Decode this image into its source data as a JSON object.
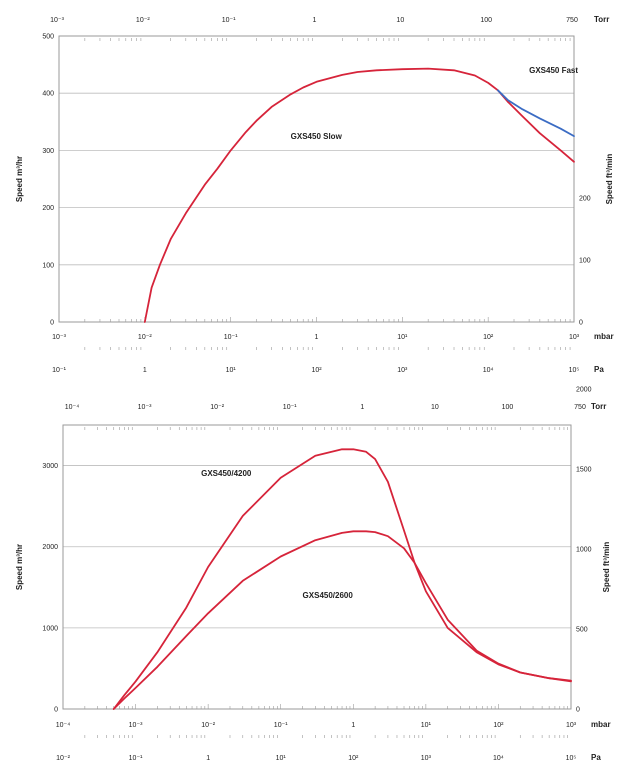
{
  "chart_data": [
    {
      "type": "line",
      "title": "",
      "x_scale": "log",
      "xlabel": "mbar",
      "xlim": [
        0.001,
        1000
      ],
      "x_ticks": [
        "10⁻³",
        "10⁻²",
        "10⁻¹",
        "1",
        "10¹",
        "10²",
        "10³"
      ],
      "top_axis": {
        "unit": "Torr",
        "ticks": [
          "10⁻³",
          "10⁻²",
          "10⁻¹",
          "1",
          "10",
          "100",
          "750"
        ]
      },
      "bottom_axis_2": {
        "unit": "Pa",
        "ticks": [
          "10⁻¹",
          "1",
          "10¹",
          "10²",
          "10³",
          "10⁴",
          "10⁵"
        ]
      },
      "ylabel": "Speed  m³/hr",
      "ylim": [
        0,
        500
      ],
      "y_ticks": [
        "0",
        "100",
        "200",
        "300",
        "400",
        "500"
      ],
      "y2label": "Speed  ft³/min",
      "y2_ticks": [
        "0",
        "100",
        "200"
      ],
      "grid": true,
      "series": [
        {
          "name": "GXS450 Slow",
          "color": "#d6243a",
          "label_pos": [
            0.5,
            320
          ],
          "x": [
            0.01,
            0.012,
            0.015,
            0.02,
            0.03,
            0.05,
            0.07,
            0.1,
            0.15,
            0.2,
            0.3,
            0.5,
            0.7,
            1,
            2,
            3,
            5,
            10,
            20,
            40,
            70,
            100,
            130,
            170,
            250,
            400,
            700,
            1000
          ],
          "y": [
            0,
            60,
            100,
            145,
            190,
            240,
            268,
            300,
            332,
            352,
            376,
            398,
            410,
            420,
            432,
            437,
            440,
            442,
            443,
            440,
            431,
            418,
            405,
            385,
            360,
            330,
            300,
            280
          ]
        },
        {
          "name": "GXS450 Fast",
          "color": "#3b6cc4",
          "label_pos": [
            300,
            435
          ],
          "x": [
            130,
            170,
            250,
            400,
            700,
            1000
          ],
          "y": [
            405,
            388,
            372,
            356,
            338,
            325
          ]
        }
      ]
    },
    {
      "type": "line",
      "title": "",
      "x_scale": "log",
      "xlabel": "mbar",
      "xlim": [
        0.0001,
        1000
      ],
      "x_ticks": [
        "10⁻⁴",
        "10⁻³",
        "10⁻²",
        "10⁻¹",
        "1",
        "10¹",
        "10²",
        "10³"
      ],
      "top_axis": {
        "unit": "Torr",
        "ticks": [
          "10⁻⁴",
          "10⁻³",
          "10⁻²",
          "10⁻¹",
          "1",
          "10",
          "100",
          "750"
        ]
      },
      "bottom_axis_2": {
        "unit": "Pa",
        "ticks": [
          "10⁻²",
          "10⁻¹",
          "1",
          "10¹",
          "10²",
          "10³",
          "10⁴",
          "10⁵"
        ]
      },
      "ylabel": "Speed  m³/hr",
      "ylim": [
        0,
        3500
      ],
      "y_ticks": [
        "0",
        "1000",
        "2000",
        "3000"
      ],
      "y2label": "Speed  ft³/min",
      "y2_ticks": [
        "0",
        "500",
        "1000",
        "1500",
        "2000"
      ],
      "grid": true,
      "series": [
        {
          "name": "GXS450/4200",
          "color": "#d6243a",
          "label_pos": [
            0.008,
            2870
          ],
          "x": [
            0.0005,
            0.0007,
            0.001,
            0.002,
            0.005,
            0.01,
            0.03,
            0.1,
            0.3,
            0.7,
            1,
            1.5,
            2,
            3,
            5,
            7,
            10,
            20,
            50,
            100,
            200,
            500,
            1000
          ],
          "y": [
            0,
            170,
            340,
            700,
            1250,
            1750,
            2380,
            2850,
            3120,
            3200,
            3200,
            3170,
            3080,
            2800,
            2200,
            1800,
            1450,
            1000,
            700,
            550,
            450,
            380,
            350
          ]
        },
        {
          "name": "GXS450/2600",
          "color": "#d6243a",
          "label_pos": [
            0.2,
            1370
          ],
          "x": [
            0.0005,
            0.0007,
            0.001,
            0.002,
            0.005,
            0.01,
            0.03,
            0.1,
            0.3,
            0.7,
            1,
            1.5,
            2,
            3,
            5,
            7,
            10,
            20,
            50,
            100,
            200,
            500,
            1000
          ],
          "y": [
            0,
            130,
            260,
            520,
            900,
            1180,
            1580,
            1880,
            2080,
            2170,
            2190,
            2190,
            2180,
            2130,
            1980,
            1800,
            1550,
            1100,
            720,
            560,
            450,
            380,
            340
          ]
        }
      ]
    }
  ]
}
